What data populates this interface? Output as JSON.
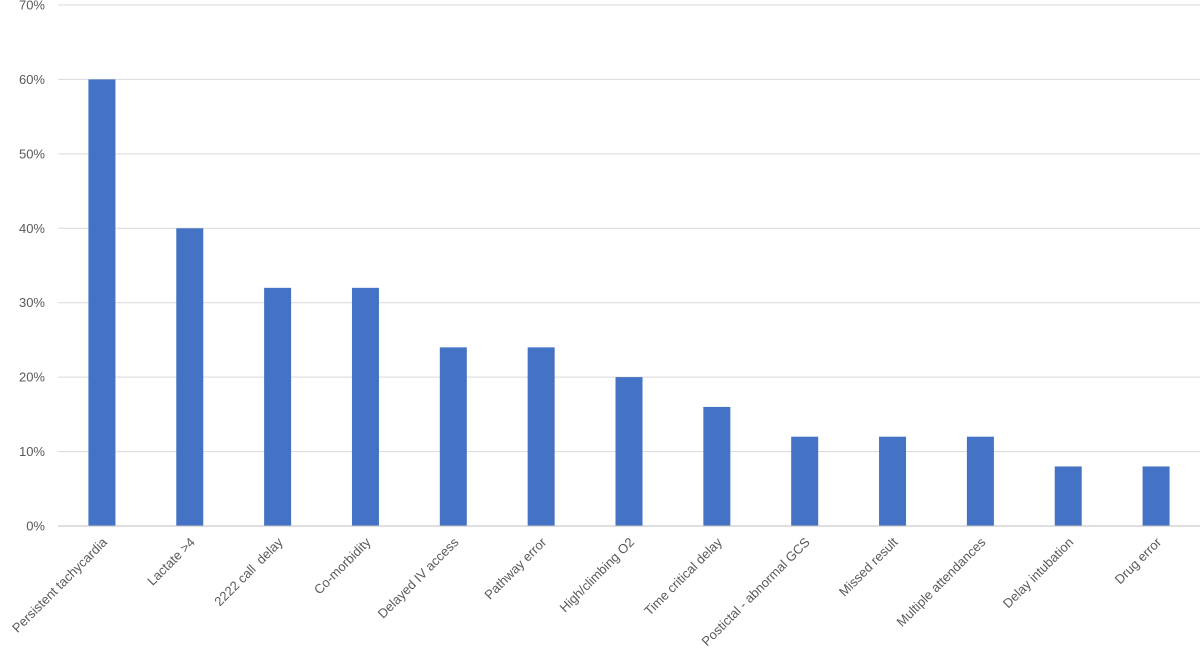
{
  "chart_data": {
    "type": "bar",
    "title": "",
    "xlabel": "",
    "ylabel": "",
    "categories": [
      "Persistent tachycardia",
      "Lactate >4",
      "2222 call  delay",
      "Co-morbidity",
      "Delayed IV access",
      "Pathway error",
      "High/climbing O2",
      "Time critical delay",
      "Postictal - abnormal GCS",
      "Missed result",
      "Multiple attendances",
      "Delay intubation",
      "Drug error"
    ],
    "values": [
      60,
      40,
      32,
      32,
      24,
      24,
      20,
      16,
      12,
      12,
      12,
      8,
      8
    ],
    "ylim": [
      0,
      70
    ],
    "yticks": [
      "0%",
      "10%",
      "20%",
      "30%",
      "40%",
      "50%",
      "60%",
      "70%"
    ],
    "grid": true,
    "legend": "none",
    "bar_color": "#4472c4"
  }
}
